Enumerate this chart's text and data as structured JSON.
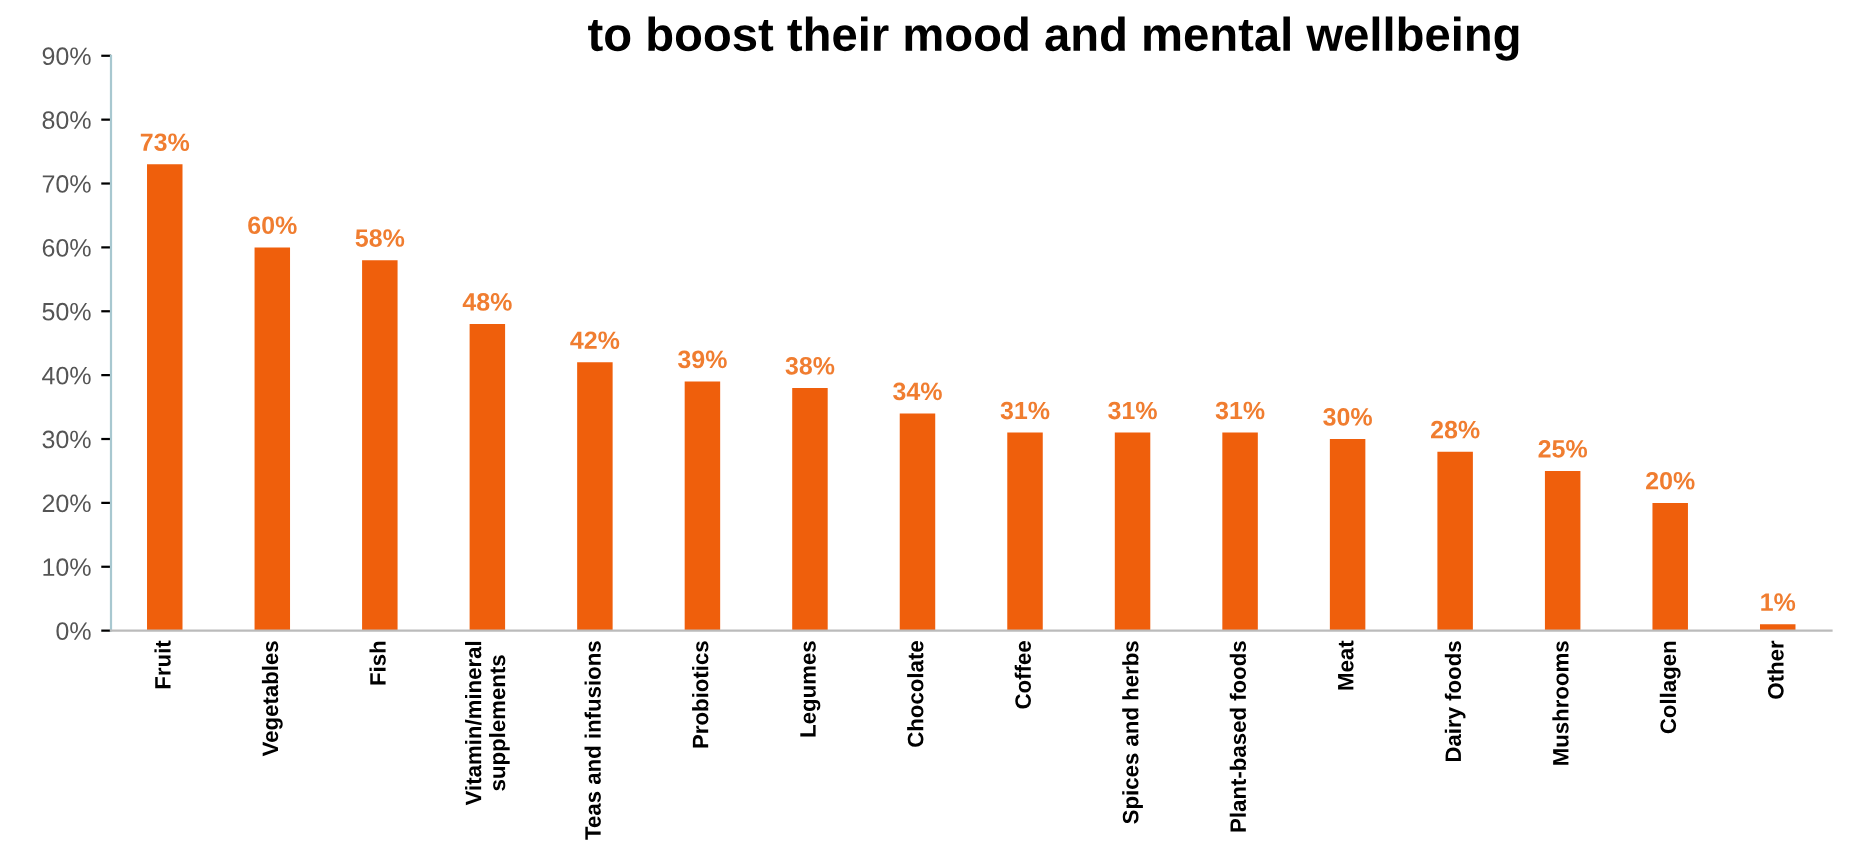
{
  "chart_data": {
    "type": "bar",
    "title": "to boost their mood and mental wellbeing",
    "categories": [
      "Fruit",
      "Vegetables",
      "Fish",
      "Vitamin/mineral\nsupplements",
      "Teas and infusions",
      "Probiotics",
      "Legumes",
      "Chocolate",
      "Coffee",
      "Spices and herbs",
      "Plant-based foods",
      "Meat",
      "Dairy foods",
      "Mushrooms",
      "Collagen",
      "Other"
    ],
    "values": [
      73,
      60,
      58,
      48,
      42,
      39,
      38,
      34,
      31,
      31,
      31,
      30,
      28,
      25,
      20,
      1
    ],
    "value_labels": [
      "73%",
      "60%",
      "58%",
      "48%",
      "42%",
      "39%",
      "38%",
      "34%",
      "31%",
      "31%",
      "31%",
      "30%",
      "28%",
      "25%",
      "20%",
      "1%"
    ],
    "color": "#ef5f0c",
    "ylim": [
      0,
      90
    ],
    "yticks": [
      {
        "value": 0,
        "label": "0%"
      },
      {
        "value": 10,
        "label": "10%"
      },
      {
        "value": 20,
        "label": "20%"
      },
      {
        "value": 30,
        "label": "30%"
      },
      {
        "value": 40,
        "label": "40%"
      },
      {
        "value": 50,
        "label": "50%"
      },
      {
        "value": 60,
        "label": "60%"
      },
      {
        "value": 70,
        "label": "70%"
      },
      {
        "value": 80,
        "label": "80%"
      },
      {
        "value": 90,
        "label": "90%"
      }
    ],
    "grid": false,
    "legend": false
  }
}
